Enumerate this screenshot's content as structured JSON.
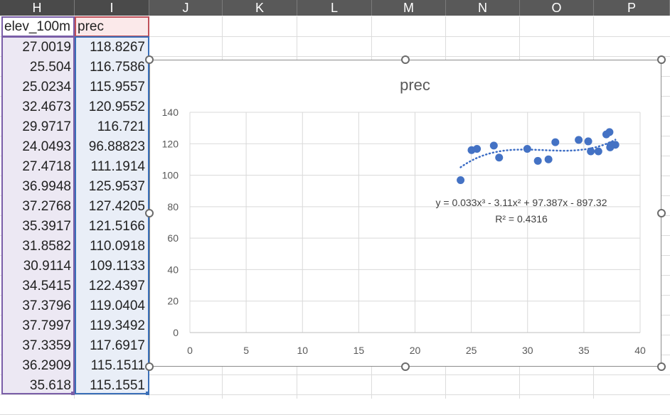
{
  "columns": [
    "H",
    "I",
    "J",
    "K",
    "L",
    "M",
    "N",
    "O",
    "P"
  ],
  "header_row": {
    "H": "elev_100m",
    "I": "prec"
  },
  "rows": [
    [
      "27.0019",
      "118.8267"
    ],
    [
      "25.504",
      "116.7586"
    ],
    [
      "25.0234",
      "115.9557"
    ],
    [
      "32.4673",
      "120.9552"
    ],
    [
      "29.9717",
      "116.721"
    ],
    [
      "24.0493",
      "96.88823"
    ],
    [
      "27.4718",
      "111.1914"
    ],
    [
      "36.9948",
      "125.9537"
    ],
    [
      "37.2768",
      "127.4205"
    ],
    [
      "35.3917",
      "121.5166"
    ],
    [
      "31.8582",
      "110.0918"
    ],
    [
      "30.9114",
      "109.1133"
    ],
    [
      "34.5415",
      "122.4397"
    ],
    [
      "37.3796",
      "119.0404"
    ],
    [
      "37.7997",
      "119.3492"
    ],
    [
      "37.3359",
      "117.6917"
    ],
    [
      "36.2909",
      "115.1511"
    ],
    [
      "35.618",
      "115.1551"
    ]
  ],
  "colors": {
    "marker": "#4472c4",
    "trend": "#3b6cc4",
    "grid": "#d9d9d9",
    "header_bg": "#595959"
  },
  "chart_data": {
    "type": "scatter",
    "title": "prec",
    "xlabel": "",
    "ylabel": "",
    "xlim": [
      0,
      40
    ],
    "ylim": [
      0,
      140
    ],
    "x_ticks": [
      0,
      5,
      10,
      15,
      20,
      25,
      30,
      35,
      40
    ],
    "y_ticks": [
      0,
      20,
      40,
      60,
      80,
      100,
      120,
      140
    ],
    "grid": true,
    "series": [
      {
        "x": [
          27.0019,
          25.504,
          25.0234,
          32.4673,
          29.9717,
          24.0493,
          27.4718,
          36.9948,
          37.2768,
          35.3917,
          31.8582,
          30.9114,
          34.5415,
          37.3796,
          37.7997,
          37.3359,
          36.2909,
          35.618
        ],
        "y": [
          118.8267,
          116.7586,
          115.9557,
          120.9552,
          116.721,
          96.88823,
          111.1914,
          125.9537,
          127.4205,
          121.5166,
          110.0918,
          109.1133,
          122.4397,
          119.0404,
          119.3492,
          117.6917,
          115.1511,
          115.1551
        ]
      }
    ],
    "trendline": {
      "type": "polynomial",
      "order": 3,
      "coefficients": [
        0.033,
        -3.11,
        97.387,
        -897.32
      ],
      "equation": "y = 0.033x³ - 3.11x² + 97.387x - 897.32",
      "r2": "R² = 0.4316"
    }
  }
}
